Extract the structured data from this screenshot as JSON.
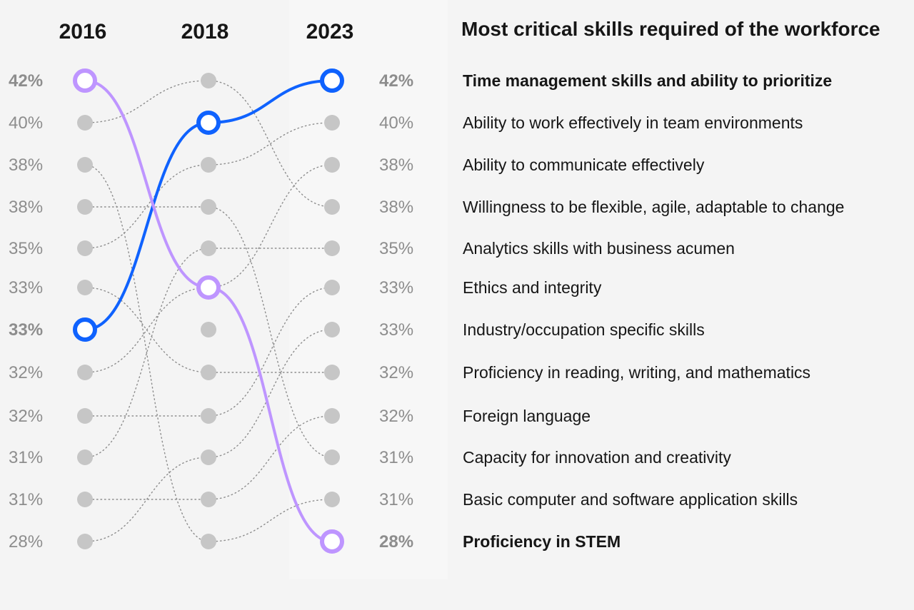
{
  "chart_data": {
    "type": "slope",
    "title": "Most critical skills required of the workforce",
    "years": [
      "2016",
      "2018",
      "2023"
    ],
    "left_values": [
      "42%",
      "40%",
      "38%",
      "38%",
      "35%",
      "33%",
      "33%",
      "32%",
      "32%",
      "31%",
      "31%",
      "28%"
    ],
    "right_values": [
      "42%",
      "40%",
      "38%",
      "38%",
      "35%",
      "33%",
      "33%",
      "32%",
      "32%",
      "31%",
      "31%",
      "28%"
    ],
    "skills": [
      {
        "name": "Time management skills and ability to prioritize",
        "rank_2016": 7,
        "rank_2018": 2,
        "rank_2023": 1,
        "value_2016": "33%",
        "value_2023": "42%",
        "highlight": "blue"
      },
      {
        "name": "Ability to work effectively in team environments",
        "rank_2016": 5,
        "rank_2018": 3,
        "rank_2023": 2,
        "value_2023": "40%"
      },
      {
        "name": "Ability to communicate effectively",
        "rank_2016": 8,
        "rank_2018": 6,
        "rank_2023": 3,
        "value_2023": "38%"
      },
      {
        "name": "Willingness to be flexible, agile, adaptable to change",
        "rank_2016": 2,
        "rank_2018": 1,
        "rank_2023": 4,
        "value_2023": "38%"
      },
      {
        "name": "Analytics skills with business acumen",
        "rank_2016": 10,
        "rank_2018": 5,
        "rank_2023": 5,
        "value_2023": "35%"
      },
      {
        "name": "Ethics and integrity",
        "rank_2016": 9,
        "rank_2018": 9,
        "rank_2023": 6,
        "value_2023": "33%"
      },
      {
        "name": "Industry/occupation specific skills",
        "rank_2016": 12,
        "rank_2018": 10,
        "rank_2023": 7,
        "value_2023": "33%"
      },
      {
        "name": "Proficiency in reading, writing, and mathematics",
        "rank_2016": 6,
        "rank_2018": 8,
        "rank_2023": 8,
        "value_2023": "32%"
      },
      {
        "name": "Foreign language",
        "rank_2016": 11,
        "rank_2018": 11,
        "rank_2023": 9,
        "value_2023": "32%"
      },
      {
        "name": "Capacity for innovation and creativity",
        "rank_2016": 4,
        "rank_2018": 4,
        "rank_2023": 10,
        "value_2023": "31%"
      },
      {
        "name": "Basic computer and software application skills",
        "rank_2016": 3,
        "rank_2018": 12,
        "rank_2023": 11,
        "value_2023": "31%"
      },
      {
        "name": "Proficiency in STEM",
        "rank_2016": 1,
        "rank_2018": 6,
        "rank_2023": 12,
        "value_2016": "42%",
        "value_2023": "28%",
        "highlight": "purple"
      }
    ],
    "colors": {
      "blue": "#0f62fe",
      "purple": "#be95ff",
      "dot": "#c6c6c6",
      "muted_text": "#8d8d8d",
      "text": "#161616"
    }
  }
}
